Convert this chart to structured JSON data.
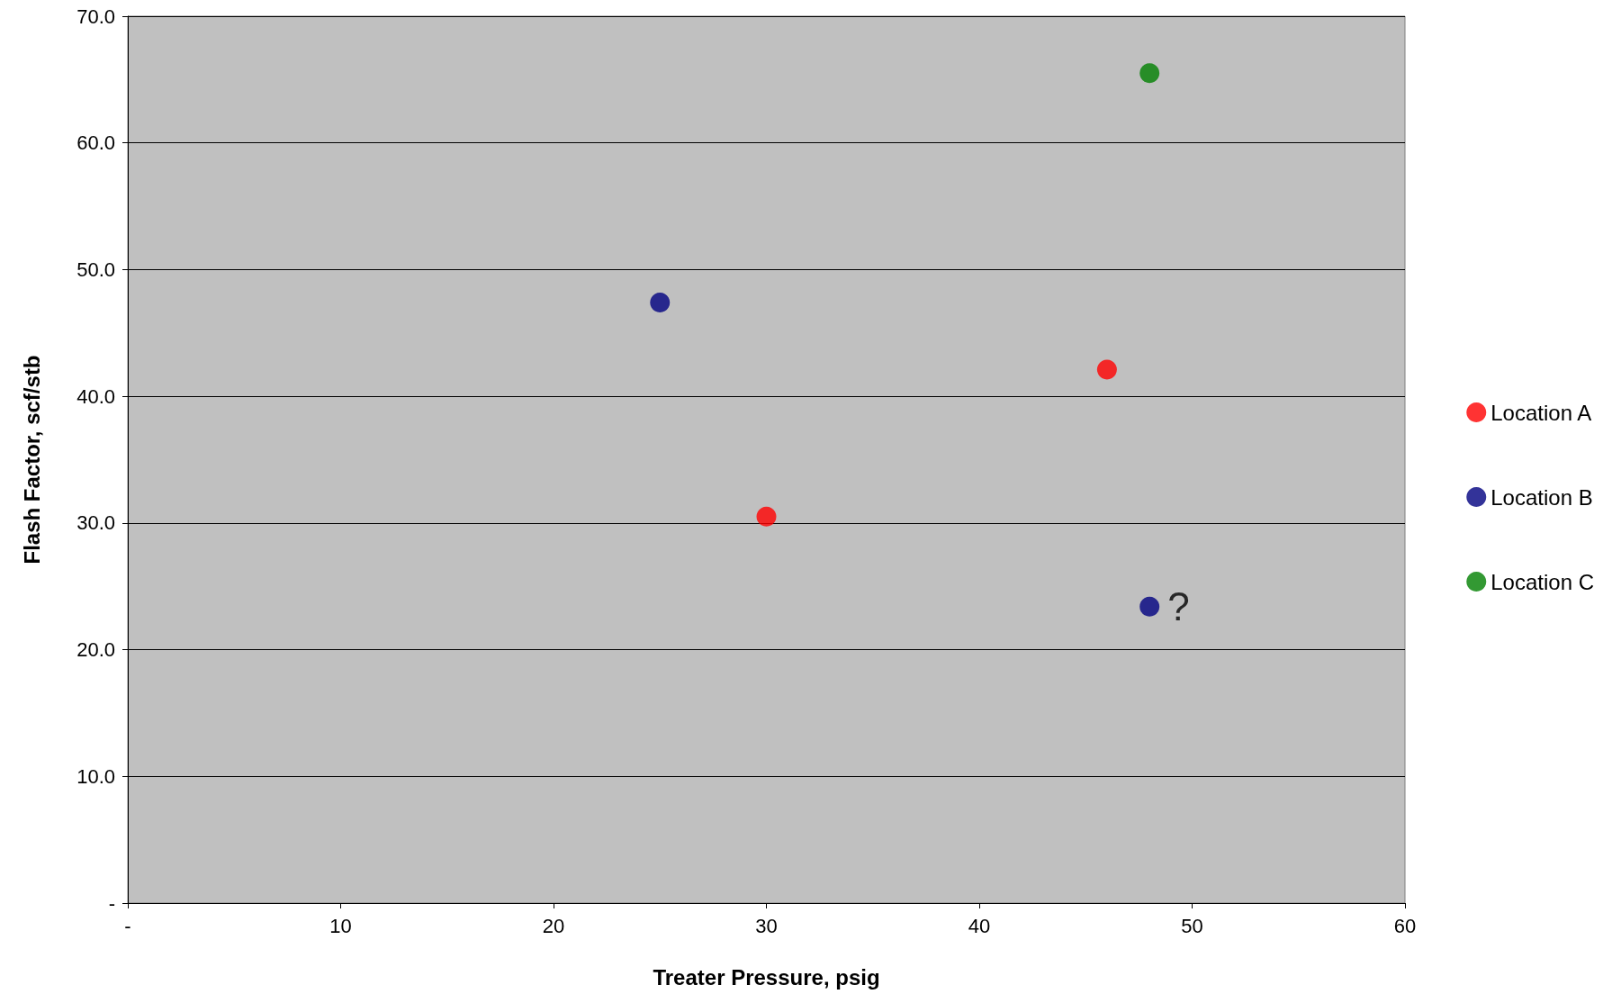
{
  "chart_data": {
    "type": "scatter",
    "xlabel": "Treater Pressure, psig",
    "ylabel": "Flash Factor, scf/stb",
    "series": [
      {
        "name": "Location A",
        "color": "#ff0000",
        "x": [
          30,
          46
        ],
        "values": [
          30.5,
          42.1
        ]
      },
      {
        "name": "Location B",
        "color": "#000080",
        "x": [
          25,
          48
        ],
        "values": [
          47.4,
          23.4
        ]
      },
      {
        "name": "Location C",
        "color": "#008000",
        "x": [
          48
        ],
        "values": [
          65.5
        ]
      }
    ],
    "annotations": [
      {
        "text": "?",
        "x": 48,
        "y": 23.4
      }
    ],
    "xlim": [
      0,
      60
    ],
    "xticks": [
      {
        "value": 0,
        "label": "-"
      },
      10,
      20,
      30,
      40,
      50,
      60
    ],
    "ylim": [
      0,
      70
    ],
    "yticks": [
      {
        "value": 0,
        "label": "-"
      },
      {
        "value": 10,
        "label": "10.0"
      },
      {
        "value": 20,
        "label": "20.0"
      },
      {
        "value": 30,
        "label": "30.0"
      },
      {
        "value": 40,
        "label": "40.0"
      },
      {
        "value": 50,
        "label": "50.0"
      },
      {
        "value": 60,
        "label": "60.0"
      },
      {
        "value": 70,
        "label": "70.0"
      }
    ],
    "grid": "y",
    "legend": "right",
    "marker": "circle"
  }
}
